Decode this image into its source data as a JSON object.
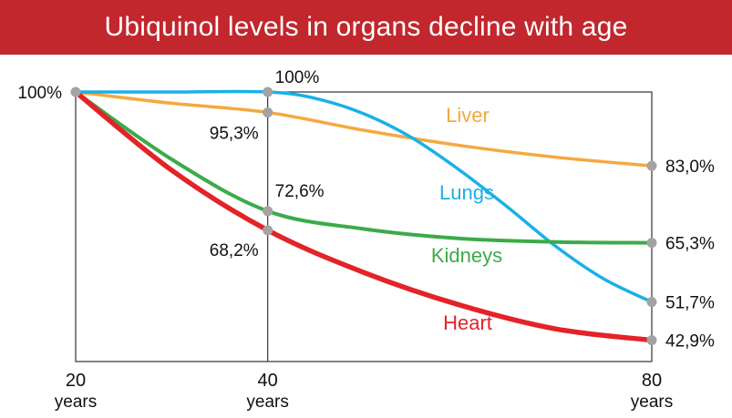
{
  "chart_data": {
    "type": "line",
    "title": "Ubiquinol levels in organs decline with age",
    "xlabel": "",
    "ylabel": "",
    "x_ticks": [
      {
        "value": 20,
        "label": "20",
        "unit": "years"
      },
      {
        "value": 40,
        "label": "40",
        "unit": "years"
      },
      {
        "value": 80,
        "label": "80",
        "unit": "years"
      }
    ],
    "y_tick_label": "100%",
    "xlim": [
      20,
      80
    ],
    "ylim": [
      38,
      100
    ],
    "grid": false,
    "series": [
      {
        "name": "Liver",
        "color": "#f5a940",
        "points": [
          [
            20,
            100
          ],
          [
            30,
            97.4
          ],
          [
            40,
            95.3
          ],
          [
            50,
            91.2
          ],
          [
            60,
            87.7
          ],
          [
            70,
            85.0
          ],
          [
            80,
            83.0
          ]
        ],
        "labels": {
          "40": "95,3%",
          "80": "83,0%"
        }
      },
      {
        "name": "Lungs",
        "color": "#1ab0e8",
        "points": [
          [
            20,
            100
          ],
          [
            30,
            100
          ],
          [
            40,
            100
          ],
          [
            45,
            98.5
          ],
          [
            50,
            95
          ],
          [
            55,
            89.5
          ],
          [
            60,
            82
          ],
          [
            65,
            73.5
          ],
          [
            70,
            64.5
          ],
          [
            75,
            57
          ],
          [
            80,
            51.7
          ]
        ],
        "labels": {
          "40": "100%",
          "80": "51,7%"
        }
      },
      {
        "name": "Kidneys",
        "color": "#3bab49",
        "points": [
          [
            20,
            100
          ],
          [
            30,
            84.5
          ],
          [
            40,
            72.6
          ],
          [
            50,
            68.5
          ],
          [
            60,
            66.3
          ],
          [
            70,
            65.5
          ],
          [
            80,
            65.3
          ]
        ],
        "labels": {
          "40": "72,6%",
          "80": "65,3%"
        }
      },
      {
        "name": "Heart",
        "color": "#e32328",
        "points": [
          [
            20,
            100
          ],
          [
            30,
            82
          ],
          [
            40,
            68.2
          ],
          [
            50,
            58.5
          ],
          [
            60,
            51
          ],
          [
            70,
            45.5
          ],
          [
            80,
            42.9
          ]
        ],
        "labels": {
          "40": "68,2%",
          "80": "42,9%"
        }
      }
    ]
  }
}
